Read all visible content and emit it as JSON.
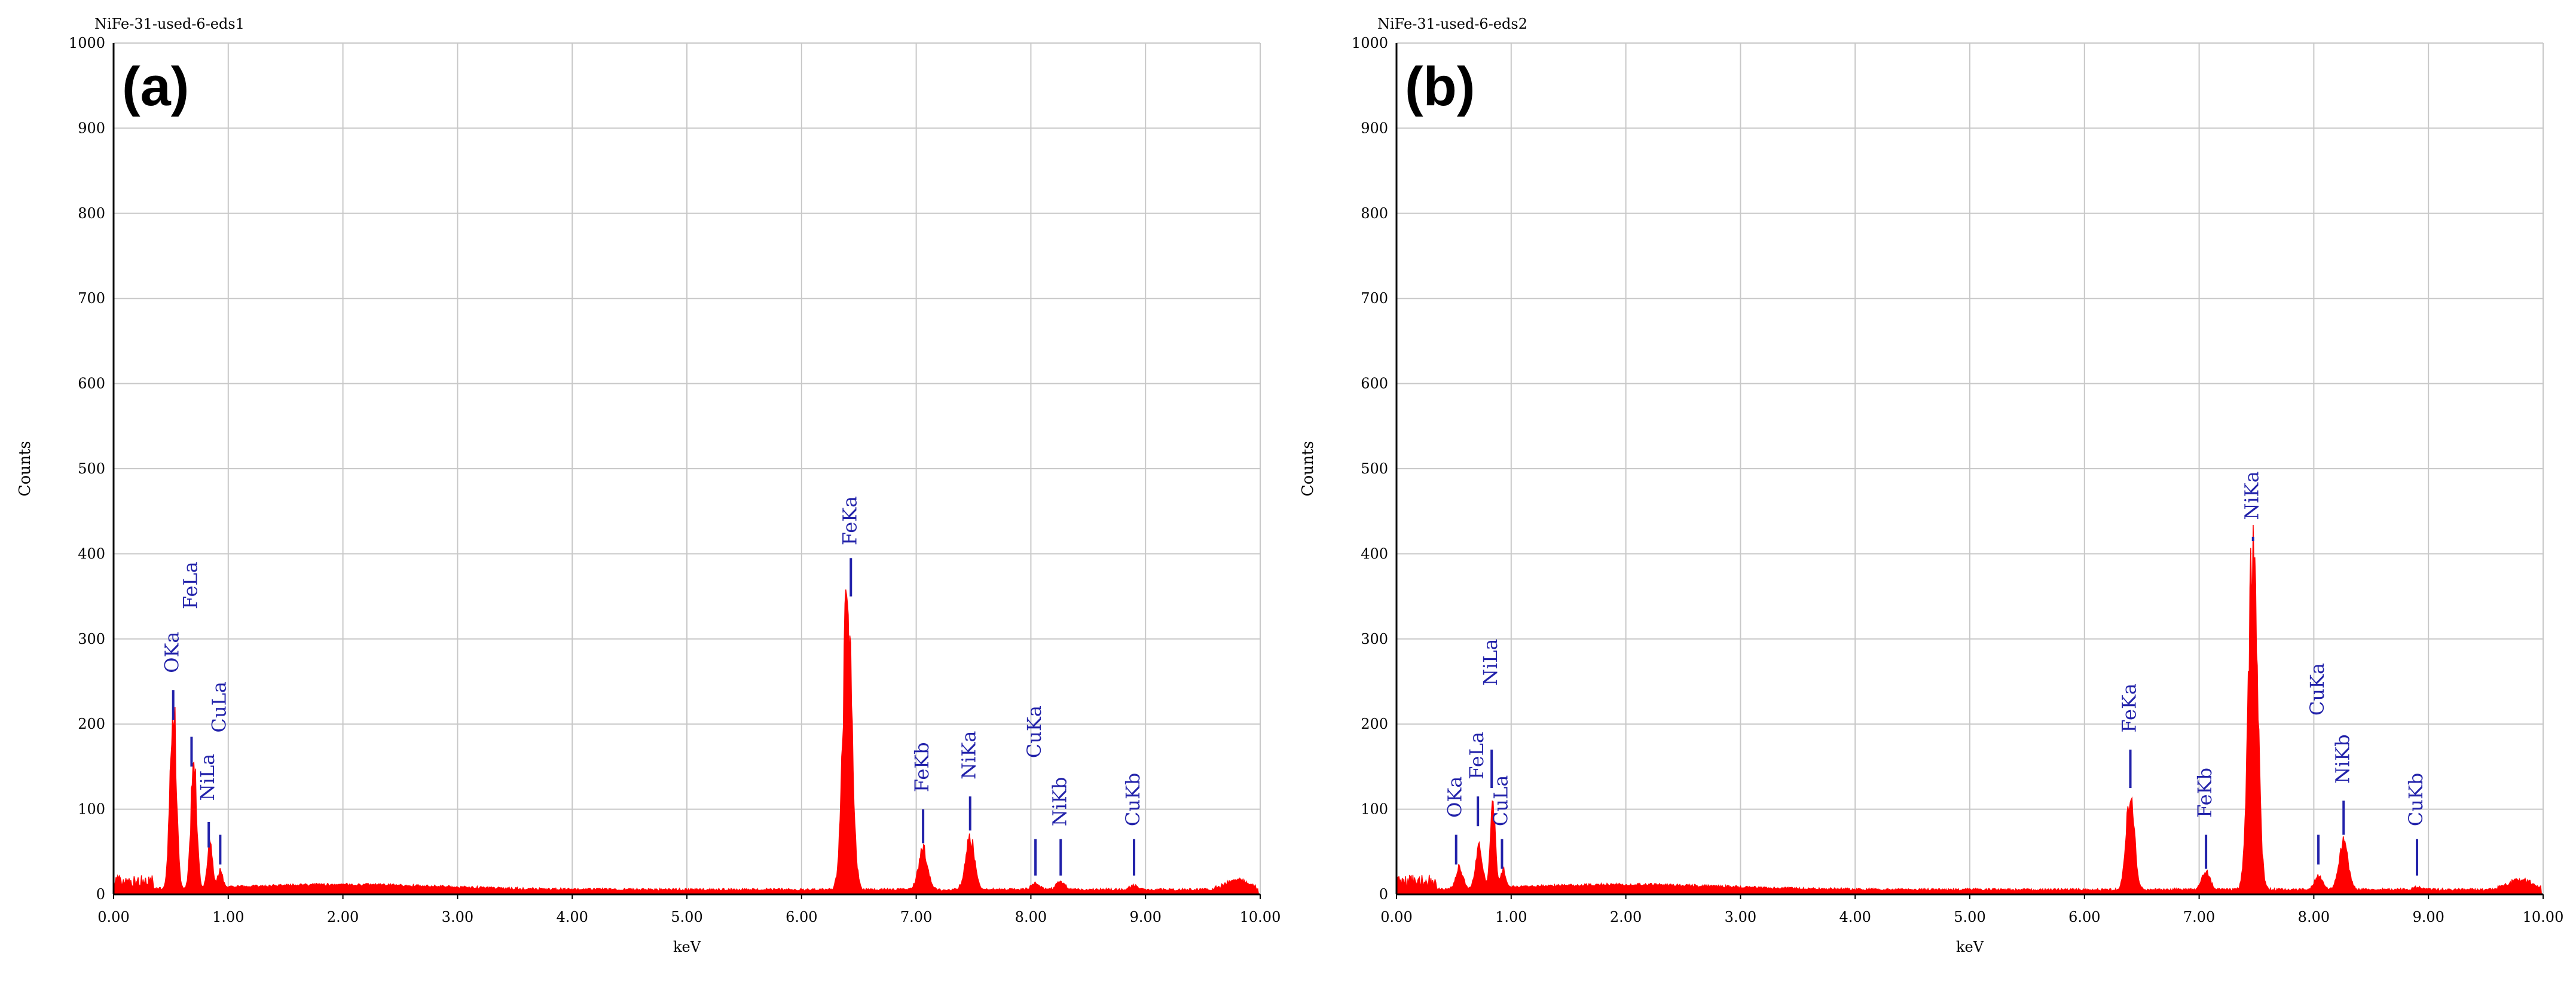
{
  "chart_data": [
    {
      "type": "area",
      "file_title": "NiFe-31-used-6-eds1",
      "panel_label": "(a)",
      "xlabel": "keV",
      "ylabel": "Counts",
      "xlim": [
        0,
        10
      ],
      "ylim": [
        0,
        1000
      ],
      "x_ticks": [
        "0.00",
        "1.00",
        "2.00",
        "3.00",
        "4.00",
        "5.00",
        "6.00",
        "7.00",
        "8.00",
        "9.00",
        "10.00"
      ],
      "y_ticks": [
        "0",
        "100",
        "200",
        "300",
        "400",
        "500",
        "600",
        "700",
        "800",
        "900",
        "1000"
      ],
      "grid": true,
      "series_color": "#ff0000",
      "label_color": "#2222aa",
      "peaks": [
        {
          "label": "OKa",
          "x": 0.52,
          "y": 220,
          "w": 0.038
        },
        {
          "label": "FeLa",
          "x": 0.7,
          "y": 150,
          "w": 0.035
        },
        {
          "label": "NiLa",
          "x": 0.84,
          "y": 55,
          "w": 0.03
        },
        {
          "label": "CuLa",
          "x": 0.93,
          "y": 20,
          "w": 0.03
        },
        {
          "label": "FeKa",
          "x": 6.4,
          "y": 340,
          "w": 0.055
        },
        {
          "label": "FeKb",
          "x": 7.06,
          "y": 48,
          "w": 0.055
        },
        {
          "label": "NiKa",
          "x": 7.47,
          "y": 62,
          "w": 0.055
        },
        {
          "label": "CuKa",
          "x": 8.04,
          "y": 8,
          "w": 0.05
        },
        {
          "label": "NiKb",
          "x": 8.26,
          "y": 10,
          "w": 0.05
        },
        {
          "label": "CuKb",
          "x": 8.9,
          "y": 5,
          "w": 0.05
        }
      ],
      "markers": [
        {
          "label": "OKa",
          "x": 0.52,
          "y1": 240,
          "y2": 205,
          "label_y": 260
        },
        {
          "label": "FeLa",
          "x": 0.68,
          "y1": 185,
          "y2": 150,
          "label_y": 335
        },
        {
          "label": "NiLa",
          "x": 0.83,
          "y1": 85,
          "y2": 55,
          "label_y": 110
        },
        {
          "label": "CuLa",
          "x": 0.93,
          "y1": 70,
          "y2": 35,
          "label_y": 190
        },
        {
          "label": "FeKa",
          "x": 6.43,
          "y1": 395,
          "y2": 350,
          "label_y": 410
        },
        {
          "label": "FeKb",
          "x": 7.06,
          "y1": 100,
          "y2": 60,
          "label_y": 120
        },
        {
          "label": "NiKa",
          "x": 7.47,
          "y1": 115,
          "y2": 75,
          "label_y": 135
        },
        {
          "label": "CuKa",
          "x": 8.04,
          "y1": 65,
          "y2": 22,
          "label_y": 160
        },
        {
          "label": "NiKb",
          "x": 8.26,
          "y1": 65,
          "y2": 22,
          "label_y": 80
        },
        {
          "label": "CuKb",
          "x": 8.9,
          "y1": 65,
          "y2": 22,
          "label_y": 80
        }
      ]
    },
    {
      "type": "area",
      "file_title": "NiFe-31-used-6-eds2",
      "panel_label": "(b)",
      "xlabel": "keV",
      "ylabel": "Counts",
      "xlim": [
        0,
        10
      ],
      "ylim": [
        0,
        1000
      ],
      "x_ticks": [
        "0.00",
        "1.00",
        "2.00",
        "3.00",
        "4.00",
        "5.00",
        "6.00",
        "7.00",
        "8.00",
        "9.00",
        "10.00"
      ],
      "y_ticks": [
        "0",
        "100",
        "200",
        "300",
        "400",
        "500",
        "600",
        "700",
        "800",
        "900",
        "1000"
      ],
      "grid": true,
      "series_color": "#ff0000",
      "label_color": "#2222aa",
      "peaks": [
        {
          "label": "OKa",
          "x": 0.55,
          "y": 25,
          "w": 0.04
        },
        {
          "label": "FeLa",
          "x": 0.72,
          "y": 50,
          "w": 0.04
        },
        {
          "label": "NiLa",
          "x": 0.84,
          "y": 100,
          "w": 0.03
        },
        {
          "label": "CuLa",
          "x": 0.93,
          "y": 20,
          "w": 0.03
        },
        {
          "label": "FeKa",
          "x": 6.4,
          "y": 110,
          "w": 0.05
        },
        {
          "label": "FeKb",
          "x": 7.06,
          "y": 20,
          "w": 0.05
        },
        {
          "label": "NiKa",
          "x": 7.47,
          "y": 400,
          "w": 0.055
        },
        {
          "label": "CuKa",
          "x": 8.04,
          "y": 15,
          "w": 0.05
        },
        {
          "label": "NiKb",
          "x": 8.26,
          "y": 55,
          "w": 0.055
        },
        {
          "label": "CuKb",
          "x": 8.9,
          "y": 3,
          "w": 0.05
        }
      ],
      "markers": [
        {
          "label": "OKa",
          "x": 0.52,
          "y1": 70,
          "y2": 35,
          "label_y": 90
        },
        {
          "label": "FeLa",
          "x": 0.71,
          "y1": 115,
          "y2": 80,
          "label_y": 135
        },
        {
          "label": "NiLa",
          "x": 0.83,
          "y1": 170,
          "y2": 125,
          "label_y": 245
        },
        {
          "label": "CuLa",
          "x": 0.92,
          "y1": 65,
          "y2": 30,
          "label_y": 80
        },
        {
          "label": "FeKa",
          "x": 6.4,
          "y1": 170,
          "y2": 125,
          "label_y": 190
        },
        {
          "label": "FeKb",
          "x": 7.06,
          "y1": 70,
          "y2": 30,
          "label_y": 90
        },
        {
          "label": "NiKa",
          "x": 7.47,
          "y1": 415,
          "y2": 420,
          "label_y": 440
        },
        {
          "label": "CuKa",
          "x": 8.04,
          "y1": 70,
          "y2": 35,
          "label_y": 210
        },
        {
          "label": "NiKb",
          "x": 8.26,
          "y1": 110,
          "y2": 70,
          "label_y": 130
        },
        {
          "label": "CuKb",
          "x": 8.9,
          "y1": 65,
          "y2": 22,
          "label_y": 80
        }
      ]
    }
  ]
}
